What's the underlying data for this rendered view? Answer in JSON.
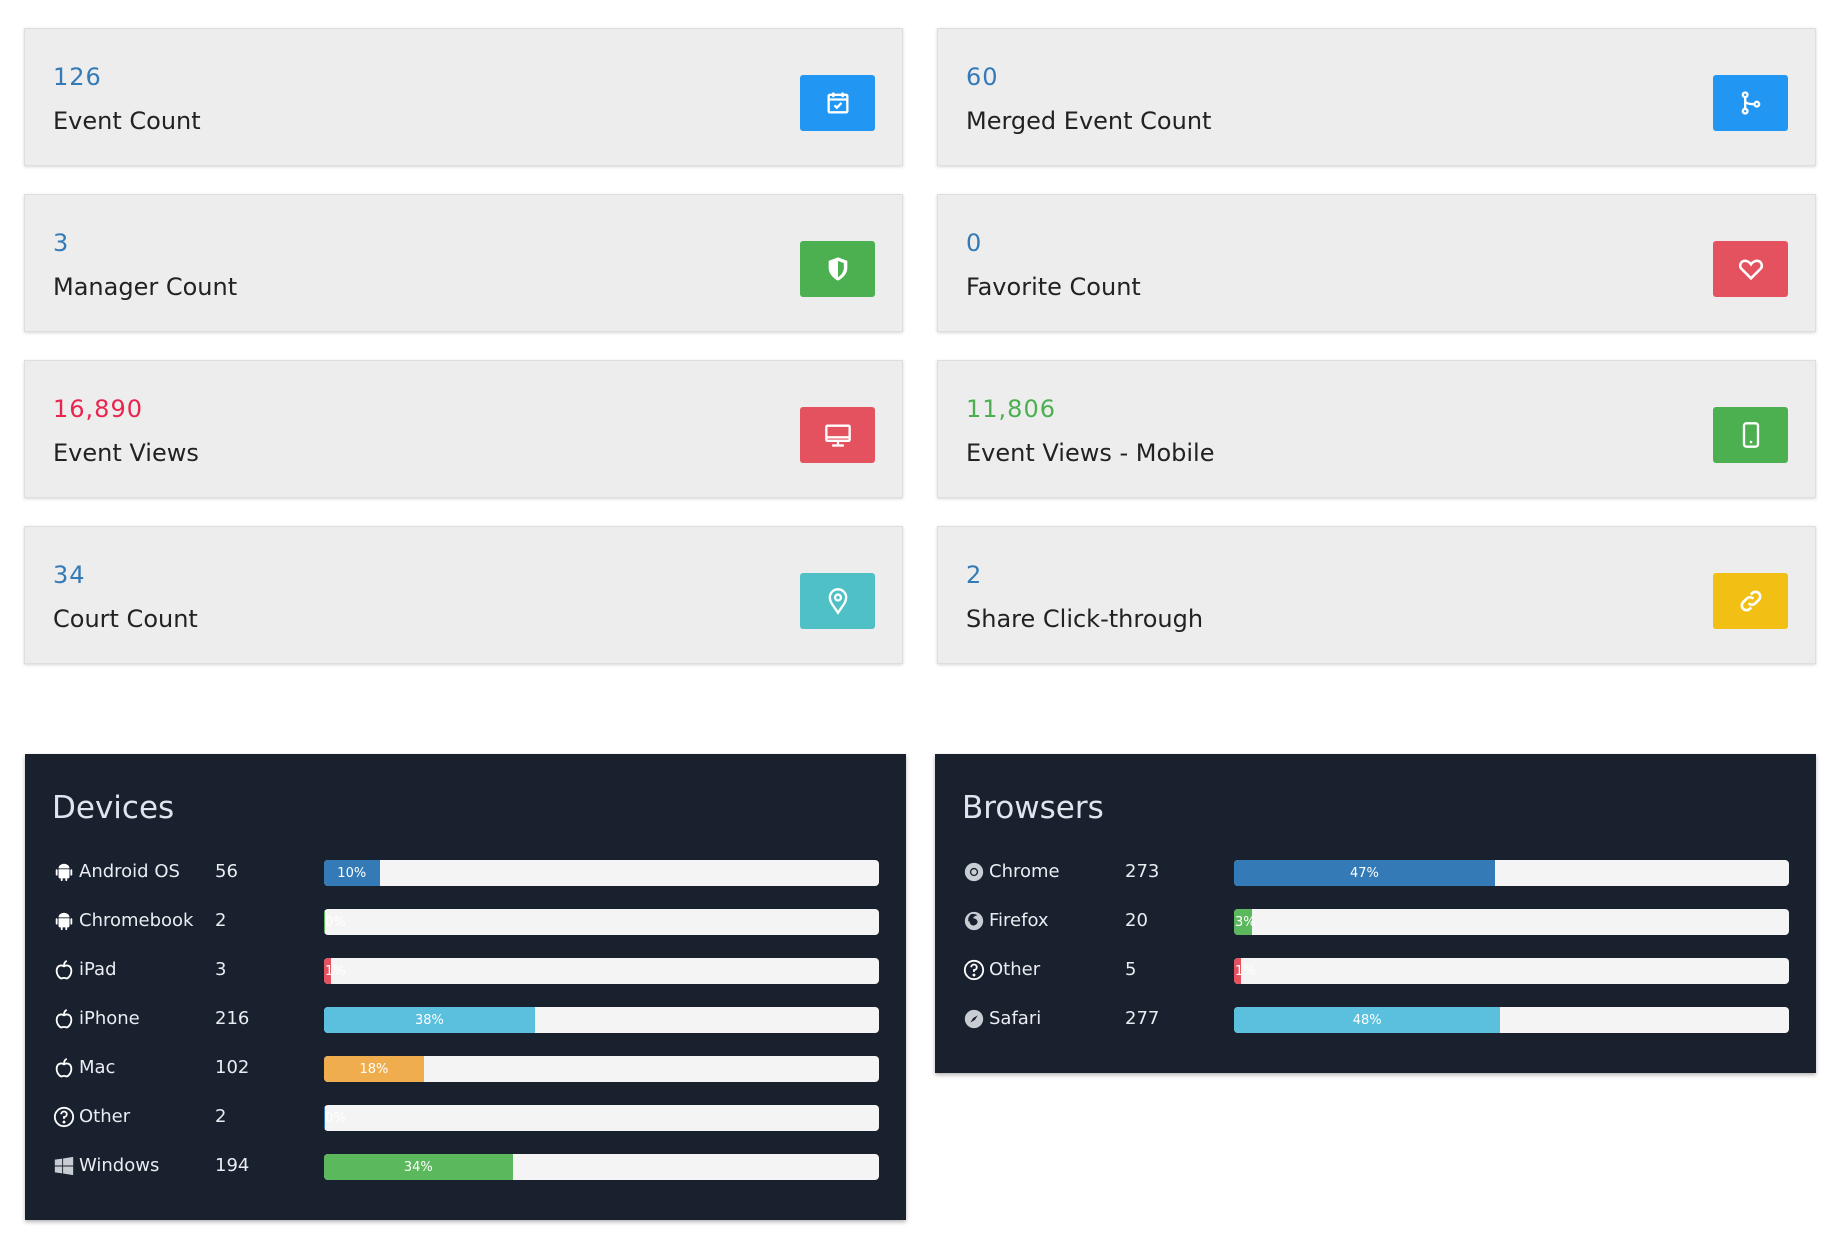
{
  "stats": [
    {
      "value": "126",
      "label": "Event Count",
      "value_color": "#337ab7",
      "icon": "calendar-check-icon",
      "icon_bg": "#2196f3"
    },
    {
      "value": "60",
      "label": "Merged Event Count",
      "value_color": "#337ab7",
      "icon": "code-branch-icon",
      "icon_bg": "#2196f3"
    },
    {
      "value": "3",
      "label": "Manager Count",
      "value_color": "#337ab7",
      "icon": "shield-icon",
      "icon_bg": "#4caf50"
    },
    {
      "value": "0",
      "label": "Favorite Count",
      "value_color": "#337ab7",
      "icon": "heart-icon",
      "icon_bg": "#e5525f"
    },
    {
      "value": "16,890",
      "label": "Event Views",
      "value_color": "#e8254f",
      "icon": "desktop-icon",
      "icon_bg": "#e5525f"
    },
    {
      "value": "11,806",
      "label": "Event Views - Mobile",
      "value_color": "#4caf50",
      "icon": "mobile-icon",
      "icon_bg": "#4caf50"
    },
    {
      "value": "34",
      "label": "Court Count",
      "value_color": "#337ab7",
      "icon": "map-pin-icon",
      "icon_bg": "#4fc1c6"
    },
    {
      "value": "2",
      "label": "Share Click-through",
      "value_color": "#337ab7",
      "icon": "link-icon",
      "icon_bg": "#f2c014"
    }
  ],
  "devices": {
    "title": "Devices",
    "items": [
      {
        "name": "Android OS",
        "count": "56",
        "percent": 10,
        "percent_label": "10%",
        "color": "#337ab7",
        "icon": "android-icon"
      },
      {
        "name": "Chromebook",
        "count": "2",
        "percent": 0,
        "percent_label": "0%",
        "color": "#5cb85c",
        "icon": "android-icon"
      },
      {
        "name": "iPad",
        "count": "3",
        "percent": 1,
        "percent_label": "1%",
        "color": "#e5525f",
        "icon": "apple-icon"
      },
      {
        "name": "iPhone",
        "count": "216",
        "percent": 38,
        "percent_label": "38%",
        "color": "#5bc0de",
        "icon": "apple-icon"
      },
      {
        "name": "Mac",
        "count": "102",
        "percent": 18,
        "percent_label": "18%",
        "color": "#f0ad4e",
        "icon": "apple-icon"
      },
      {
        "name": "Other",
        "count": "2",
        "percent": 0,
        "percent_label": "0%",
        "color": "#337ab7",
        "icon": "question-circle-icon"
      },
      {
        "name": "Windows",
        "count": "194",
        "percent": 34,
        "percent_label": "34%",
        "color": "#5cb85c",
        "icon": "windows-icon"
      }
    ]
  },
  "browsers": {
    "title": "Browsers",
    "items": [
      {
        "name": "Chrome",
        "count": "273",
        "percent": 47,
        "percent_label": "47%",
        "color": "#337ab7",
        "icon": "chrome-icon"
      },
      {
        "name": "Firefox",
        "count": "20",
        "percent": 3,
        "percent_label": "3%",
        "color": "#5cb85c",
        "icon": "firefox-icon"
      },
      {
        "name": "Other",
        "count": "5",
        "percent": 1,
        "percent_label": "1%",
        "color": "#e5525f",
        "icon": "question-circle-icon"
      },
      {
        "name": "Safari",
        "count": "277",
        "percent": 48,
        "percent_label": "48%",
        "color": "#5bc0de",
        "icon": "safari-icon"
      }
    ]
  }
}
